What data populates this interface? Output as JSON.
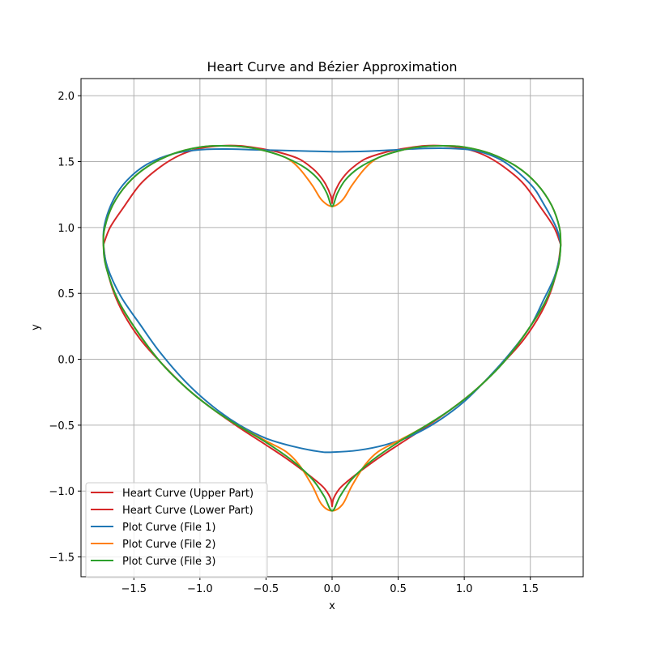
{
  "chart_data": {
    "type": "line",
    "title": "Heart Curve and Bézier Approximation",
    "xlabel": "x",
    "ylabel": "y",
    "xlim": [
      -1.9,
      1.9
    ],
    "ylim": [
      -1.65,
      2.13
    ],
    "xticks": [
      -1.5,
      -1.0,
      -0.5,
      0.0,
      0.5,
      1.0,
      1.5
    ],
    "xtick_labels": [
      "−1.5",
      "−1.0",
      "−0.5",
      "0.0",
      "0.5",
      "1.0",
      "1.5"
    ],
    "yticks": [
      -1.5,
      -1.0,
      -0.5,
      0.0,
      0.5,
      1.0,
      1.5,
      2.0
    ],
    "ytick_labels": [
      "−1.5",
      "−1.0",
      "−0.5",
      "0.0",
      "0.5",
      "1.0",
      "1.5",
      "2.0"
    ],
    "grid": true,
    "legend_position": "lower-left",
    "series": [
      {
        "name": "Heart Curve (Upper Part)",
        "color": "#d62728",
        "x": [
          0.0,
          0.01,
          0.05,
          0.1,
          0.15,
          0.25,
          0.4,
          0.55,
          0.7,
          0.84,
          1.0,
          1.15,
          1.3,
          1.45,
          1.58,
          1.68,
          1.73
        ],
        "y": [
          1.18,
          1.24,
          1.33,
          1.4,
          1.45,
          1.52,
          1.57,
          1.6,
          1.62,
          1.62,
          1.6,
          1.55,
          1.46,
          1.33,
          1.15,
          1.0,
          0.87
        ]
      },
      {
        "name": "Heart Curve (Lower Part)",
        "color": "#d62728",
        "x": [
          0.0,
          0.01,
          0.05,
          0.1,
          0.2,
          0.35,
          0.5,
          0.7,
          0.9,
          1.1,
          1.3,
          1.45,
          1.58,
          1.66,
          1.71,
          1.73
        ],
        "y": [
          -1.12,
          -1.06,
          -0.99,
          -0.94,
          -0.86,
          -0.75,
          -0.65,
          -0.52,
          -0.38,
          -0.22,
          -0.02,
          0.15,
          0.35,
          0.53,
          0.72,
          0.87
        ]
      },
      {
        "name": "Plot Curve (File 1)",
        "color": "#1f77b4",
        "x": [
          1.73,
          1.7,
          1.6,
          1.5,
          1.3,
          1.1,
          0.9,
          0.7,
          0.5,
          0.3,
          0.1,
          0.0,
          -0.2,
          -0.4,
          -0.6,
          -0.8,
          -1.0,
          -1.2,
          -1.4,
          -1.55,
          -1.65,
          -1.72,
          -1.73,
          -1.7,
          -1.6,
          -1.45,
          -1.3,
          -1.1,
          -0.9,
          -0.7,
          -0.5,
          -0.3,
          -0.1,
          0.0,
          0.2,
          0.4,
          0.6,
          0.8,
          1.0,
          1.2,
          1.35,
          1.5,
          1.6,
          1.68,
          1.72,
          1.73
        ],
        "y": [
          0.87,
          0.99,
          1.18,
          1.33,
          1.5,
          1.58,
          1.6,
          1.6,
          1.59,
          1.58,
          1.575,
          1.575,
          1.58,
          1.585,
          1.59,
          1.595,
          1.59,
          1.56,
          1.48,
          1.36,
          1.22,
          1.03,
          0.87,
          0.7,
          0.48,
          0.26,
          0.05,
          -0.18,
          -0.36,
          -0.5,
          -0.6,
          -0.66,
          -0.7,
          -0.705,
          -0.69,
          -0.65,
          -0.58,
          -0.47,
          -0.32,
          -0.12,
          0.05,
          0.25,
          0.45,
          0.62,
          0.77,
          0.87
        ]
      },
      {
        "name": "Plot Curve (File 2)",
        "color": "#ff7f0e",
        "x": [
          1.73,
          1.72,
          1.66,
          1.55,
          1.4,
          1.2,
          1.0,
          0.84,
          0.65,
          0.5,
          0.35,
          0.25,
          0.15,
          0.08,
          0.0,
          -0.08,
          -0.15,
          -0.25,
          -0.35,
          -0.5,
          -0.65,
          -0.84,
          -1.0,
          -1.2,
          -1.4,
          -1.55,
          -1.66,
          -1.72,
          -1.73,
          -1.71,
          -1.62,
          -1.48,
          -1.3,
          -1.1,
          -0.9,
          -0.7,
          -0.5,
          -0.35,
          -0.25,
          -0.15,
          -0.08,
          0.0,
          0.08,
          0.15,
          0.25,
          0.35,
          0.5,
          0.7,
          0.9,
          1.1,
          1.3,
          1.48,
          1.62,
          1.71,
          1.73
        ],
        "y": [
          0.87,
          1.0,
          1.17,
          1.33,
          1.46,
          1.56,
          1.61,
          1.62,
          1.61,
          1.58,
          1.53,
          1.45,
          1.32,
          1.21,
          1.16,
          1.21,
          1.32,
          1.45,
          1.53,
          1.58,
          1.61,
          1.62,
          1.61,
          1.56,
          1.46,
          1.33,
          1.17,
          1.0,
          0.87,
          0.7,
          0.45,
          0.22,
          -0.02,
          -0.22,
          -0.38,
          -0.51,
          -0.62,
          -0.7,
          -0.8,
          -0.96,
          -1.1,
          -1.15,
          -1.1,
          -0.96,
          -0.8,
          -0.7,
          -0.62,
          -0.51,
          -0.38,
          -0.22,
          -0.02,
          0.22,
          0.45,
          0.7,
          0.87
        ]
      },
      {
        "name": "Plot Curve (File 3)",
        "color": "#2ca02c",
        "x": [
          1.73,
          1.72,
          1.66,
          1.55,
          1.4,
          1.2,
          1.0,
          0.84,
          0.65,
          0.5,
          0.35,
          0.2,
          0.1,
          0.04,
          0.0,
          -0.04,
          -0.1,
          -0.2,
          -0.35,
          -0.5,
          -0.65,
          -0.84,
          -1.0,
          -1.2,
          -1.4,
          -1.55,
          -1.66,
          -1.72,
          -1.73,
          -1.71,
          -1.62,
          -1.48,
          -1.3,
          -1.1,
          -0.9,
          -0.7,
          -0.5,
          -0.3,
          -0.15,
          -0.06,
          0.0,
          0.06,
          0.15,
          0.3,
          0.5,
          0.7,
          0.9,
          1.1,
          1.3,
          1.48,
          1.62,
          1.71,
          1.73
        ],
        "y": [
          0.87,
          1.0,
          1.17,
          1.33,
          1.46,
          1.56,
          1.61,
          1.62,
          1.61,
          1.58,
          1.53,
          1.45,
          1.36,
          1.26,
          1.16,
          1.26,
          1.36,
          1.45,
          1.53,
          1.58,
          1.61,
          1.62,
          1.61,
          1.56,
          1.46,
          1.33,
          1.17,
          1.0,
          0.87,
          0.7,
          0.45,
          0.22,
          -0.02,
          -0.22,
          -0.38,
          -0.51,
          -0.63,
          -0.77,
          -0.91,
          -1.04,
          -1.15,
          -1.04,
          -0.91,
          -0.77,
          -0.63,
          -0.51,
          -0.38,
          -0.22,
          -0.02,
          0.22,
          0.45,
          0.7,
          0.87
        ]
      }
    ]
  }
}
